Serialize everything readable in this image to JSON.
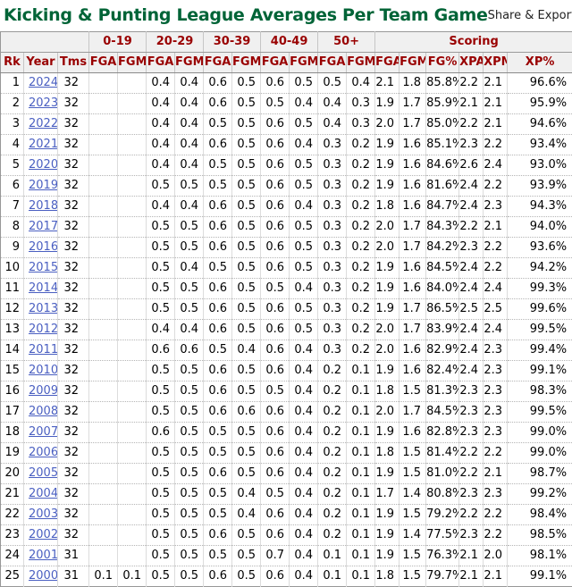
{
  "page": {
    "title": "Kicking & Punting League Averages Per Team Game",
    "share_export_label": "Share & Export"
  },
  "colors": {
    "title_green": "#006437",
    "header_maroon": "#990000",
    "year_link_blue": "#4a5fc1",
    "header_background": "#f0f0f0",
    "share_export_text": "#222222"
  },
  "table": {
    "column_groups": [
      {
        "label": "",
        "span": 3
      },
      {
        "label": "0-19",
        "span": 2
      },
      {
        "label": "20-29",
        "span": 2
      },
      {
        "label": "30-39",
        "span": 2
      },
      {
        "label": "40-49",
        "span": 2
      },
      {
        "label": "50+",
        "span": 2
      },
      {
        "label": "Scoring",
        "span": 6
      }
    ],
    "columns": [
      "Rk",
      "Year",
      "Tms",
      "FGA",
      "FGM",
      "FGA",
      "FGM",
      "FGA",
      "FGM",
      "FGA",
      "FGM",
      "FGA",
      "FGM",
      "FGA",
      "FGM",
      "FG%",
      "XPA",
      "XPM",
      "XP%"
    ],
    "rows": [
      [
        "1",
        "2024",
        "32",
        "",
        "",
        "0.4",
        "0.4",
        "0.6",
        "0.5",
        "0.6",
        "0.5",
        "0.5",
        "0.4",
        "2.1",
        "1.8",
        "85.8%",
        "2.2",
        "2.1",
        "96.6%"
      ],
      [
        "2",
        "2023",
        "32",
        "",
        "",
        "0.4",
        "0.4",
        "0.6",
        "0.5",
        "0.5",
        "0.4",
        "0.4",
        "0.3",
        "1.9",
        "1.7",
        "85.9%",
        "2.1",
        "2.1",
        "95.9%"
      ],
      [
        "3",
        "2022",
        "32",
        "",
        "",
        "0.4",
        "0.4",
        "0.5",
        "0.5",
        "0.6",
        "0.5",
        "0.4",
        "0.3",
        "2.0",
        "1.7",
        "85.0%",
        "2.2",
        "2.1",
        "94.6%"
      ],
      [
        "4",
        "2021",
        "32",
        "",
        "",
        "0.4",
        "0.4",
        "0.6",
        "0.5",
        "0.6",
        "0.4",
        "0.3",
        "0.2",
        "1.9",
        "1.6",
        "85.1%",
        "2.3",
        "2.2",
        "93.4%"
      ],
      [
        "5",
        "2020",
        "32",
        "",
        "",
        "0.4",
        "0.4",
        "0.5",
        "0.5",
        "0.6",
        "0.5",
        "0.3",
        "0.2",
        "1.9",
        "1.6",
        "84.6%",
        "2.6",
        "2.4",
        "93.0%"
      ],
      [
        "6",
        "2019",
        "32",
        "",
        "",
        "0.5",
        "0.5",
        "0.5",
        "0.5",
        "0.6",
        "0.5",
        "0.3",
        "0.2",
        "1.9",
        "1.6",
        "81.6%",
        "2.4",
        "2.2",
        "93.9%"
      ],
      [
        "7",
        "2018",
        "32",
        "",
        "",
        "0.4",
        "0.4",
        "0.6",
        "0.5",
        "0.6",
        "0.4",
        "0.3",
        "0.2",
        "1.8",
        "1.6",
        "84.7%",
        "2.4",
        "2.3",
        "94.3%"
      ],
      [
        "8",
        "2017",
        "32",
        "",
        "",
        "0.5",
        "0.5",
        "0.6",
        "0.5",
        "0.6",
        "0.5",
        "0.3",
        "0.2",
        "2.0",
        "1.7",
        "84.3%",
        "2.2",
        "2.1",
        "94.0%"
      ],
      [
        "9",
        "2016",
        "32",
        "",
        "",
        "0.5",
        "0.5",
        "0.6",
        "0.5",
        "0.6",
        "0.5",
        "0.3",
        "0.2",
        "2.0",
        "1.7",
        "84.2%",
        "2.3",
        "2.2",
        "93.6%"
      ],
      [
        "10",
        "2015",
        "32",
        "",
        "",
        "0.5",
        "0.4",
        "0.5",
        "0.5",
        "0.6",
        "0.5",
        "0.3",
        "0.2",
        "1.9",
        "1.6",
        "84.5%",
        "2.4",
        "2.2",
        "94.2%"
      ],
      [
        "11",
        "2014",
        "32",
        "",
        "",
        "0.5",
        "0.5",
        "0.6",
        "0.5",
        "0.5",
        "0.4",
        "0.3",
        "0.2",
        "1.9",
        "1.6",
        "84.0%",
        "2.4",
        "2.4",
        "99.3%"
      ],
      [
        "12",
        "2013",
        "32",
        "",
        "",
        "0.5",
        "0.5",
        "0.6",
        "0.5",
        "0.6",
        "0.5",
        "0.3",
        "0.2",
        "1.9",
        "1.7",
        "86.5%",
        "2.5",
        "2.5",
        "99.6%"
      ],
      [
        "13",
        "2012",
        "32",
        "",
        "",
        "0.4",
        "0.4",
        "0.6",
        "0.5",
        "0.6",
        "0.5",
        "0.3",
        "0.2",
        "2.0",
        "1.7",
        "83.9%",
        "2.4",
        "2.4",
        "99.5%"
      ],
      [
        "14",
        "2011",
        "32",
        "",
        "",
        "0.6",
        "0.6",
        "0.5",
        "0.4",
        "0.6",
        "0.4",
        "0.3",
        "0.2",
        "2.0",
        "1.6",
        "82.9%",
        "2.4",
        "2.3",
        "99.4%"
      ],
      [
        "15",
        "2010",
        "32",
        "",
        "",
        "0.5",
        "0.5",
        "0.6",
        "0.5",
        "0.6",
        "0.4",
        "0.2",
        "0.1",
        "1.9",
        "1.6",
        "82.4%",
        "2.4",
        "2.3",
        "99.1%"
      ],
      [
        "16",
        "2009",
        "32",
        "",
        "",
        "0.5",
        "0.5",
        "0.6",
        "0.5",
        "0.5",
        "0.4",
        "0.2",
        "0.1",
        "1.8",
        "1.5",
        "81.3%",
        "2.3",
        "2.3",
        "98.3%"
      ],
      [
        "17",
        "2008",
        "32",
        "",
        "",
        "0.5",
        "0.5",
        "0.6",
        "0.6",
        "0.6",
        "0.4",
        "0.2",
        "0.1",
        "2.0",
        "1.7",
        "84.5%",
        "2.3",
        "2.3",
        "99.5%"
      ],
      [
        "18",
        "2007",
        "32",
        "",
        "",
        "0.6",
        "0.5",
        "0.5",
        "0.5",
        "0.6",
        "0.4",
        "0.2",
        "0.1",
        "1.9",
        "1.6",
        "82.8%",
        "2.3",
        "2.3",
        "99.0%"
      ],
      [
        "19",
        "2006",
        "32",
        "",
        "",
        "0.5",
        "0.5",
        "0.5",
        "0.5",
        "0.6",
        "0.4",
        "0.2",
        "0.1",
        "1.8",
        "1.5",
        "81.4%",
        "2.2",
        "2.2",
        "99.0%"
      ],
      [
        "20",
        "2005",
        "32",
        "",
        "",
        "0.5",
        "0.5",
        "0.6",
        "0.5",
        "0.6",
        "0.4",
        "0.2",
        "0.1",
        "1.9",
        "1.5",
        "81.0%",
        "2.2",
        "2.1",
        "98.7%"
      ],
      [
        "21",
        "2004",
        "32",
        "",
        "",
        "0.5",
        "0.5",
        "0.5",
        "0.4",
        "0.5",
        "0.4",
        "0.2",
        "0.1",
        "1.7",
        "1.4",
        "80.8%",
        "2.3",
        "2.3",
        "99.2%"
      ],
      [
        "22",
        "2003",
        "32",
        "",
        "",
        "0.5",
        "0.5",
        "0.5",
        "0.4",
        "0.6",
        "0.4",
        "0.2",
        "0.1",
        "1.9",
        "1.5",
        "79.2%",
        "2.2",
        "2.2",
        "98.4%"
      ],
      [
        "23",
        "2002",
        "32",
        "",
        "",
        "0.5",
        "0.5",
        "0.6",
        "0.5",
        "0.6",
        "0.4",
        "0.2",
        "0.1",
        "1.9",
        "1.4",
        "77.5%",
        "2.3",
        "2.2",
        "98.5%"
      ],
      [
        "24",
        "2001",
        "31",
        "",
        "",
        "0.5",
        "0.5",
        "0.5",
        "0.5",
        "0.7",
        "0.4",
        "0.1",
        "0.1",
        "1.9",
        "1.5",
        "76.3%",
        "2.1",
        "2.0",
        "98.1%"
      ],
      [
        "25",
        "2000",
        "31",
        "0.1",
        "0.1",
        "0.5",
        "0.5",
        "0.6",
        "0.5",
        "0.6",
        "0.4",
        "0.1",
        "0.1",
        "1.8",
        "1.5",
        "79.7%",
        "2.1",
        "2.1",
        "99.1%"
      ]
    ]
  }
}
